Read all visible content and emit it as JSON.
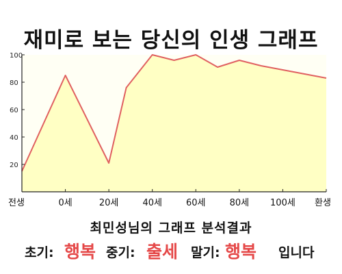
{
  "chart_data": {
    "type": "area",
    "title": "재미로 보는 당신의 인생 그래프",
    "x_tick_labels": [
      "전생",
      "0세",
      "20세",
      "40세",
      "60세",
      "80세",
      "100세",
      "환생"
    ],
    "x_tick_values": [
      -20,
      0,
      20,
      40,
      60,
      80,
      100,
      120
    ],
    "ylim": [
      0,
      100
    ],
    "y_ticks": [
      20,
      40,
      60,
      80,
      100
    ],
    "series": [
      {
        "x": [
          -20,
          0,
          20,
          28,
          40,
          50,
          60,
          70,
          80,
          90,
          100,
          120
        ],
        "y": [
          15,
          85,
          21,
          76,
          100,
          96,
          100,
          91,
          96,
          92,
          89,
          83
        ]
      }
    ],
    "grid": false,
    "colors": {
      "line": "#e06060",
      "fill": "#ffffc4",
      "plot_bg": "#fffff4",
      "axis": "#222222"
    }
  },
  "caption": "최민성님의 그래프 분석결과",
  "results": {
    "early_label": "초기:",
    "early_value": "행복",
    "mid_label": "중기:",
    "mid_value": "출세",
    "late_label": "말기:",
    "late_value": "행복",
    "ending": "입니다"
  },
  "colors": {
    "result_value": "#e54848"
  }
}
